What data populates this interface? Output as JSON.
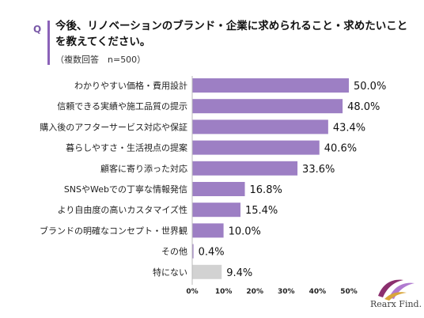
{
  "header": {
    "q_label": "Q",
    "title": "今後、リノベーションのブランド・企業に求められること・求めたいことを教えてください。",
    "note": "（複数回答　n=500）"
  },
  "logo": {
    "text": "Rearx Find."
  },
  "colors": {
    "bar_main": "#9d7fc4",
    "bar_none": "#d2d2d2",
    "accent": "#8b62b8"
  },
  "chart_data": {
    "type": "bar",
    "orientation": "horizontal",
    "categories": [
      "わかりやすい価格・費用設計",
      "信頼できる実績や施工品質の提示",
      "購入後のアフターサービス対応や保証",
      "暮らしやすさ・生活視点の提案",
      "顧客に寄り添った対応",
      "SNSやWebでの丁寧な情報発信",
      "より自由度の高いカスタマイズ性",
      "ブランドの明確なコンセプト・世界観",
      "その他",
      "特にない"
    ],
    "values": [
      50.0,
      48.0,
      43.4,
      40.6,
      33.6,
      16.8,
      15.4,
      10.0,
      0.4,
      9.4
    ],
    "data_labels": [
      "50.0%",
      "48.0%",
      "43.4%",
      "40.6%",
      "33.6%",
      "16.8%",
      "15.4%",
      "10.0%",
      "0.4%",
      "9.4%"
    ],
    "xlim": [
      0,
      50
    ],
    "ticks": [
      "0%",
      "10%",
      "20%",
      "30%",
      "40%",
      "50%"
    ],
    "grid": false
  }
}
